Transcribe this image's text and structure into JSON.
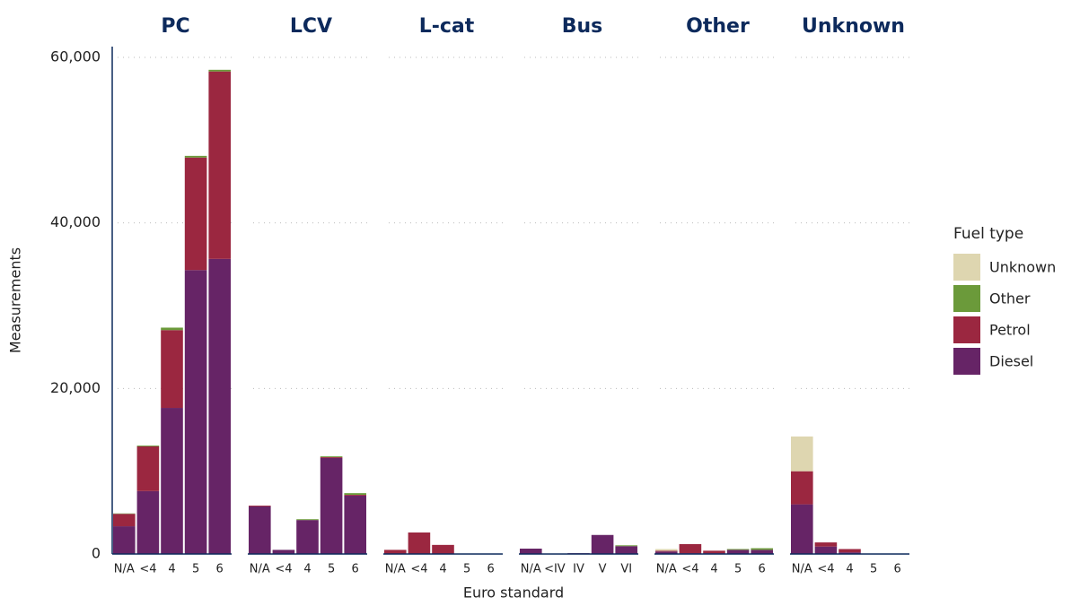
{
  "shared": {
    "ylabel": "Measurements",
    "xlabel": "Euro standard",
    "ylim": [
      0,
      60000
    ],
    "yticks": [
      0,
      {
        "value": 20000,
        "label": "20,000"
      },
      {
        "value": 40000,
        "label": "40,000"
      },
      {
        "value": 60000,
        "label": "60,000"
      }
    ],
    "grid": true
  },
  "legend": {
    "title": "Fuel type",
    "items": [
      {
        "name": "Diesel",
        "color": "#662466"
      },
      {
        "name": "Petrol",
        "color": "#9b2740"
      },
      {
        "name": "Other",
        "color": "#6b9a3a"
      },
      {
        "name": "Unknown",
        "color": "#ded6b0"
      }
    ]
  },
  "chart_data": [
    {
      "type": "stacked_bar",
      "title": "PC",
      "categories": [
        "N/A",
        "<4",
        "4",
        "5",
        "6"
      ],
      "series": [
        {
          "values": [
            3350,
            7600,
            17650,
            34300,
            35650
          ]
        },
        {
          "values": [
            1500,
            5400,
            9400,
            13600,
            22650
          ]
        },
        {
          "values": [
            50,
            100,
            300,
            200,
            200
          ]
        },
        {
          "values": [
            0,
            0,
            0,
            0,
            0
          ]
        }
      ]
    },
    {
      "type": "stacked_bar",
      "title": "LCV",
      "categories": [
        "N/A",
        "<4",
        "4",
        "5",
        "6"
      ],
      "series": [
        {
          "values": [
            5750,
            500,
            4100,
            11600,
            7050
          ]
        },
        {
          "values": [
            100,
            0,
            0,
            100,
            100
          ]
        },
        {
          "values": [
            0,
            0,
            100,
            100,
            200
          ]
        },
        {
          "values": [
            0,
            0,
            0,
            0,
            0
          ]
        }
      ]
    },
    {
      "type": "stacked_bar",
      "title": "L-cat",
      "categories": [
        "N/A",
        "<4",
        "4",
        "5",
        "6"
      ],
      "series": [
        {
          "values": [
            0,
            0,
            0,
            0,
            0
          ]
        },
        {
          "values": [
            500,
            2600,
            1100,
            50,
            50
          ]
        },
        {
          "values": [
            0,
            0,
            0,
            0,
            0
          ]
        },
        {
          "values": [
            0,
            0,
            0,
            0,
            0
          ]
        }
      ]
    },
    {
      "type": "stacked_bar",
      "title": "Bus",
      "categories": [
        "N/A",
        "<IV",
        "IV",
        "V",
        "VI"
      ],
      "series": [
        {
          "values": [
            650,
            50,
            100,
            2300,
            950
          ]
        },
        {
          "values": [
            0,
            0,
            0,
            0,
            0
          ]
        },
        {
          "values": [
            0,
            0,
            0,
            0,
            100
          ]
        },
        {
          "values": [
            0,
            0,
            0,
            0,
            0
          ]
        }
      ]
    },
    {
      "type": "stacked_bar",
      "title": "Other",
      "categories": [
        "N/A",
        "<4",
        "4",
        "5",
        "6"
      ],
      "series": [
        {
          "values": [
            300,
            100,
            100,
            500,
            500
          ]
        },
        {
          "values": [
            100,
            1100,
            300,
            0,
            0
          ]
        },
        {
          "values": [
            0,
            0,
            0,
            100,
            200
          ]
        },
        {
          "values": [
            200,
            0,
            0,
            0,
            0
          ]
        }
      ]
    },
    {
      "type": "stacked_bar",
      "title": "Unknown",
      "categories": [
        "N/A",
        "<4",
        "4",
        "5",
        "6"
      ],
      "series": [
        {
          "values": [
            6000,
            900,
            200,
            50,
            50
          ]
        },
        {
          "values": [
            4000,
            500,
            400,
            0,
            0
          ]
        },
        {
          "values": [
            0,
            0,
            0,
            0,
            0
          ]
        },
        {
          "values": [
            4200,
            0,
            0,
            0,
            0
          ]
        }
      ]
    }
  ]
}
